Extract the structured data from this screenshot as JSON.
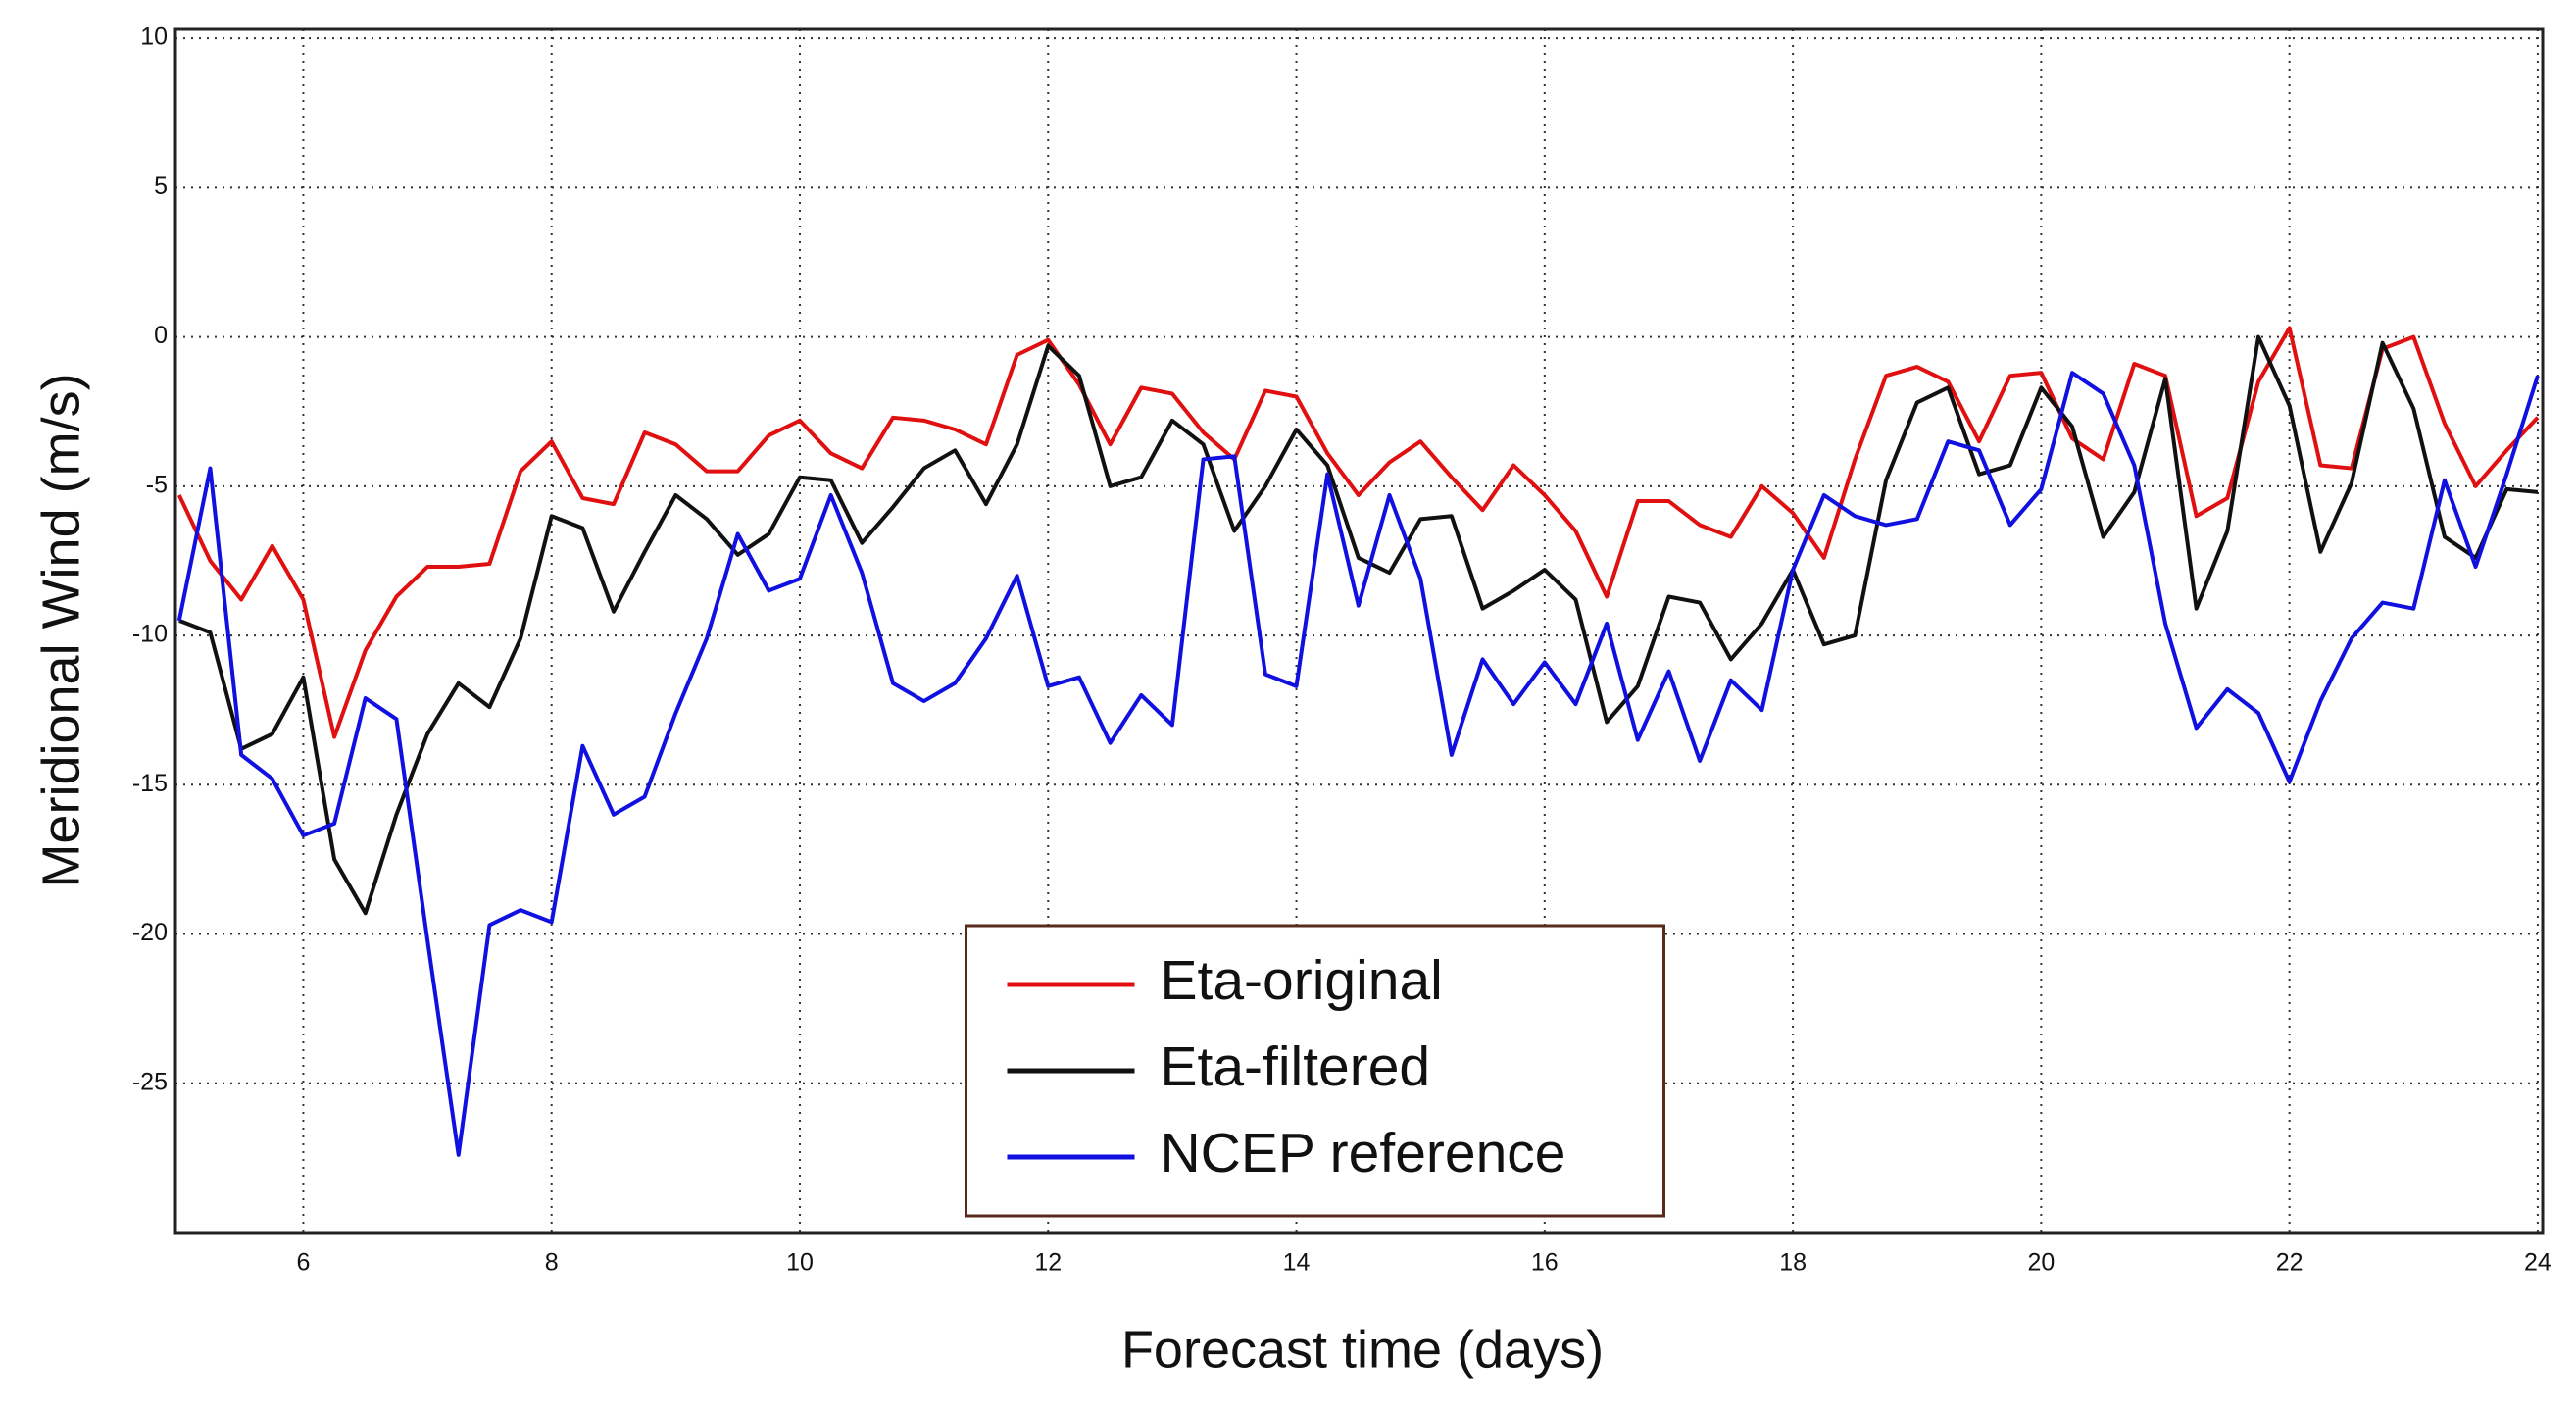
{
  "chart_data": {
    "type": "line",
    "xlabel": "Forecast time (days)",
    "ylabel": "Meridional Wind (m/s)",
    "x": [
      5,
      5.25,
      5.5,
      5.75,
      6,
      6.25,
      6.5,
      6.75,
      7,
      7.25,
      7.5,
      7.75,
      8,
      8.25,
      8.5,
      8.75,
      9,
      9.25,
      9.5,
      9.75,
      10,
      10.25,
      10.5,
      10.75,
      11,
      11.25,
      11.5,
      11.75,
      12,
      12.25,
      12.5,
      12.75,
      13,
      13.25,
      13.5,
      13.75,
      14,
      14.25,
      14.5,
      14.75,
      15,
      15.25,
      15.5,
      15.75,
      16,
      16.25,
      16.5,
      16.75,
      17,
      17.25,
      17.5,
      17.75,
      18,
      18.25,
      18.5,
      18.75,
      19,
      19.25,
      19.5,
      19.75,
      20,
      20.25,
      20.5,
      20.75,
      21,
      21.25,
      21.5,
      21.75,
      22,
      22.25,
      22.5,
      22.75,
      23,
      23.25,
      23.5,
      23.75,
      24
    ],
    "series": [
      {
        "name": "Eta-original",
        "color": "#e01010",
        "values": [
          -5.3,
          -7.5,
          -8.8,
          -7.0,
          -8.8,
          -13.4,
          -10.5,
          -8.7,
          -7.7,
          -7.7,
          -7.6,
          -4.5,
          -3.5,
          -5.4,
          -5.6,
          -3.2,
          -3.6,
          -4.5,
          -4.5,
          -3.3,
          -2.8,
          -3.9,
          -4.4,
          -2.7,
          -2.8,
          -3.1,
          -3.6,
          -0.6,
          -0.1,
          -1.6,
          -3.6,
          -1.7,
          -1.9,
          -3.2,
          -4.1,
          -1.8,
          -2.0,
          -3.9,
          -5.3,
          -4.2,
          -3.5,
          -4.7,
          -5.8,
          -4.3,
          -5.3,
          -6.5,
          -8.7,
          -5.5,
          -5.5,
          -6.3,
          -6.7,
          -5.0,
          -5.9,
          -7.4,
          -4.1,
          -1.3,
          -1.0,
          -1.5,
          -3.5,
          -1.3,
          -1.2,
          -3.4,
          -4.1,
          -0.9,
          -1.3,
          -6.0,
          -5.4,
          -1.5,
          0.3,
          -4.3,
          -4.4,
          -0.4,
          0.0,
          -2.9,
          -5.0,
          -3.8,
          -2.7
        ]
      },
      {
        "name": "Eta-filtered",
        "color": "#111111",
        "values": [
          -9.5,
          -9.9,
          -13.8,
          -13.3,
          -11.4,
          -17.5,
          -19.3,
          -16.0,
          -13.3,
          -11.6,
          -12.4,
          -10.1,
          -6.0,
          -6.4,
          -9.2,
          -7.2,
          -5.3,
          -6.1,
          -7.3,
          -6.6,
          -4.7,
          -4.8,
          -6.9,
          -5.7,
          -4.4,
          -3.8,
          -5.6,
          -3.6,
          -0.3,
          -1.3,
          -5.0,
          -4.7,
          -2.8,
          -3.6,
          -6.5,
          -5.0,
          -3.1,
          -4.3,
          -7.4,
          -7.9,
          -6.1,
          -6.0,
          -9.1,
          -8.5,
          -7.8,
          -8.8,
          -12.9,
          -11.7,
          -8.7,
          -8.9,
          -10.8,
          -9.6,
          -7.8,
          -10.3,
          -10.0,
          -4.8,
          -2.2,
          -1.7,
          -4.6,
          -4.3,
          -1.7,
          -3.0,
          -6.7,
          -5.2,
          -1.4,
          -9.1,
          -6.5,
          0.0,
          -2.3,
          -7.2,
          -4.9,
          -0.2,
          -2.4,
          -6.7,
          -7.4,
          -5.1,
          -5.2
        ]
      },
      {
        "name": "NCEP reference",
        "color": "#1010e0",
        "values": [
          -9.5,
          -4.4,
          -14.0,
          -14.8,
          -16.7,
          -16.3,
          -12.1,
          -12.8,
          -20.2,
          -27.4,
          -19.7,
          -19.2,
          -19.6,
          -13.7,
          -16.0,
          -15.4,
          -12.6,
          -10.1,
          -6.6,
          -8.5,
          -8.1,
          -5.3,
          -7.9,
          -11.6,
          -12.2,
          -11.6,
          -10.1,
          -8.0,
          -11.7,
          -11.4,
          -13.6,
          -12.0,
          -13.0,
          -4.1,
          -4.0,
          -11.3,
          -11.7,
          -4.6,
          -9.0,
          -5.3,
          -8.1,
          -14.0,
          -10.8,
          -12.3,
          -10.9,
          -12.3,
          -9.6,
          -13.5,
          -11.2,
          -14.2,
          -11.5,
          -12.5,
          -7.8,
          -5.3,
          -6.0,
          -6.3,
          -6.1,
          -3.5,
          -3.8,
          -6.3,
          -5.1,
          -1.2,
          -1.9,
          -4.3,
          -9.6,
          -13.1,
          -11.8,
          -12.6,
          -14.9,
          -12.2,
          -10.1,
          -8.9,
          -9.1,
          -4.8,
          -7.7,
          -4.6,
          -1.3
        ]
      }
    ],
    "xlim": [
      4.97,
      24.04
    ],
    "xticks": [
      6,
      8,
      10,
      12,
      14,
      16,
      18,
      20,
      22,
      24
    ],
    "ylim": [
      -30,
      10.3
    ],
    "yticks": [
      -25,
      -20,
      -15,
      -10,
      -5,
      0,
      5,
      10
    ],
    "grid": true,
    "legend": "lower center"
  }
}
